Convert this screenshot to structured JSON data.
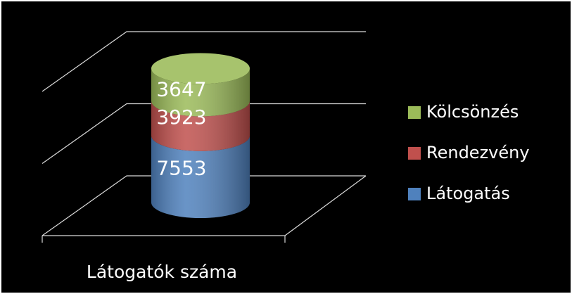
{
  "chart_data": {
    "type": "bar3d-stacked",
    "categories": [
      "Látogatók száma"
    ],
    "series": [
      {
        "name": "Látogatás",
        "color": "#4f81bd",
        "values": [
          7553
        ]
      },
      {
        "name": "Rendezvény",
        "color": "#c0504d",
        "values": [
          3923
        ]
      },
      {
        "name": "Kölcsönzés",
        "color": "#9bbb59",
        "values": [
          3647
        ]
      }
    ],
    "ylim": [
      0,
      20000
    ],
    "yticks": [
      0,
      10000,
      20000
    ],
    "grid": true,
    "legend": "right"
  }
}
